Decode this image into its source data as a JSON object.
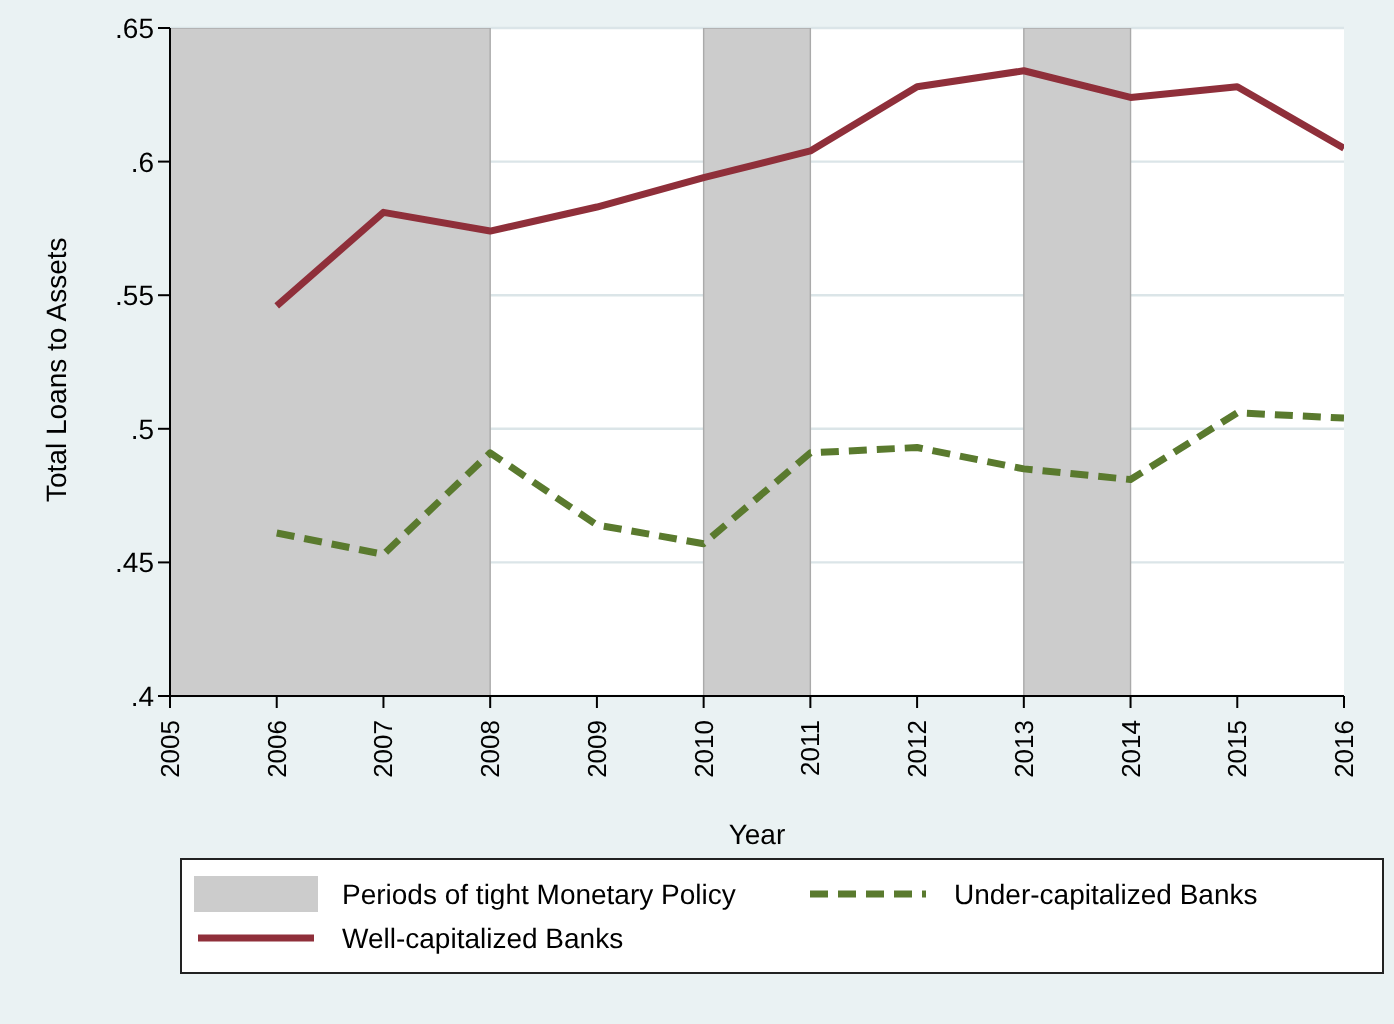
{
  "chart_data": {
    "type": "line",
    "xlabel": "Year",
    "ylabel": "Total Loans to Assets",
    "x": [
      2006,
      2007,
      2008,
      2009,
      2010,
      2011,
      2012,
      2013,
      2014,
      2015,
      2016
    ],
    "series": [
      {
        "name": "Well-capitalized Banks",
        "color": "#8f2f3a",
        "line_style": "solid",
        "values": [
          0.546,
          0.581,
          0.574,
          0.583,
          0.594,
          0.604,
          0.628,
          0.634,
          0.624,
          0.628,
          0.605
        ]
      },
      {
        "name": "Under-capitalized Banks",
        "color": "#5a7a2e",
        "line_style": "dashed",
        "values": [
          0.461,
          0.453,
          0.491,
          0.464,
          0.457,
          0.491,
          0.493,
          0.485,
          0.481,
          0.506,
          0.504
        ]
      }
    ],
    "bands": [
      {
        "axis": "x",
        "from": 2005,
        "to": 2008,
        "label": "Periods of tight Monetary Policy",
        "color": "#cccccc"
      },
      {
        "axis": "x",
        "from": 2010,
        "to": 2011,
        "color": "#cccccc"
      },
      {
        "axis": "x",
        "from": 2013,
        "to": 2014,
        "color": "#cccccc"
      }
    ],
    "xlim": [
      2005,
      2016
    ],
    "xticks": [
      2005,
      2006,
      2007,
      2008,
      2009,
      2010,
      2011,
      2012,
      2013,
      2014,
      2015,
      2016
    ],
    "ylim": [
      0.4,
      0.65
    ],
    "yticks": [
      {
        "value": 0.4,
        "label": ".4"
      },
      {
        "value": 0.45,
        "label": ".45"
      },
      {
        "value": 0.5,
        "label": ".5"
      },
      {
        "value": 0.55,
        "label": ".55"
      },
      {
        "value": 0.6,
        "label": ".6"
      },
      {
        "value": 0.65,
        "label": ".65"
      }
    ],
    "grid": "y",
    "legend": "bottom",
    "marker": "none"
  }
}
